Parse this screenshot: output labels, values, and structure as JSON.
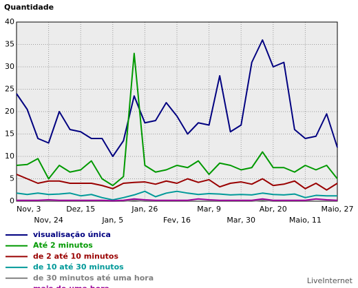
{
  "chart_data": {
    "type": "line",
    "title": "Quantidade",
    "brand": "LiveInternet",
    "categories": [
      "Nov, 3",
      null,
      null,
      "Nov, 24",
      null,
      null,
      "Dez, 15",
      null,
      null,
      "Jan, 5",
      null,
      null,
      "Jan, 26",
      null,
      null,
      "Fev, 16",
      null,
      null,
      "Mar, 9",
      null,
      null,
      "Mar, 30",
      null,
      null,
      "Abr, 20",
      null,
      null,
      "Maio, 11",
      null,
      null,
      "Maio, 27"
    ],
    "ylim": [
      0,
      40
    ],
    "yticks": [
      0,
      5,
      10,
      15,
      20,
      25,
      30,
      35,
      40
    ],
    "grid": true,
    "series": [
      {
        "name": "visualisação única",
        "color": "#000080",
        "values": [
          24,
          20.5,
          14,
          13,
          20,
          16,
          15.5,
          14,
          14,
          10,
          13.5,
          23.5,
          17.5,
          18,
          22,
          19,
          15,
          17.5,
          17,
          28,
          15.5,
          17,
          31,
          36,
          30,
          31,
          16,
          14,
          14.5,
          19.5,
          12
        ]
      },
      {
        "name": "Até 2 minutos",
        "color": "#009900",
        "values": [
          8,
          8.2,
          9.5,
          5,
          8,
          6.5,
          7,
          9,
          5,
          3.5,
          5.5,
          33,
          8,
          6.5,
          7,
          8,
          7.5,
          9,
          6,
          8.5,
          8,
          7,
          7.5,
          11,
          7.5,
          7.5,
          6.5,
          8,
          7,
          8,
          5
        ]
      },
      {
        "name": "de 2 até 10 minutos",
        "color": "#990000",
        "values": [
          6,
          5,
          4,
          4.5,
          4.5,
          4,
          4,
          4,
          3.5,
          2.8,
          4,
          4.2,
          4.3,
          3.8,
          4.5,
          4,
          5,
          4.2,
          4.8,
          3.2,
          4,
          4.3,
          3.8,
          5,
          3.5,
          3.8,
          4.5,
          2.8,
          4,
          2.5,
          4
        ]
      },
      {
        "name": "de 10 até 30 minutos",
        "color": "#009999",
        "values": [
          1.8,
          1.5,
          1.8,
          1.5,
          1.6,
          1.8,
          1.2,
          1.5,
          0.8,
          0.3,
          0.8,
          1.4,
          2.2,
          1,
          1.8,
          2.2,
          1.8,
          1.5,
          1.7,
          1.6,
          1.4,
          1.5,
          1.4,
          1.8,
          1.5,
          1.4,
          1.6,
          0.8,
          1.3,
          1.2,
          1.2
        ]
      },
      {
        "name": "de 30 minutos até uma hora",
        "color": "#808080",
        "values": [
          0,
          0,
          0,
          0,
          0,
          0,
          0,
          0,
          0,
          0,
          0,
          0.2,
          0,
          0,
          0,
          0,
          0,
          0,
          0,
          0,
          0,
          0,
          0,
          0.2,
          0,
          0,
          0,
          0,
          0,
          0,
          0
        ]
      },
      {
        "name": "mais de uma hora",
        "color": "#990099",
        "values": [
          0.2,
          0.2,
          0.2,
          0.3,
          0.2,
          0.2,
          0.2,
          0.2,
          0.2,
          0.1,
          0.2,
          0.5,
          0.3,
          0.2,
          0.2,
          0.2,
          0.2,
          0.5,
          0.3,
          0.2,
          0.2,
          0.2,
          0.2,
          0.5,
          0.2,
          0.2,
          0.2,
          0.2,
          0.5,
          0.3,
          0.2
        ]
      }
    ]
  }
}
